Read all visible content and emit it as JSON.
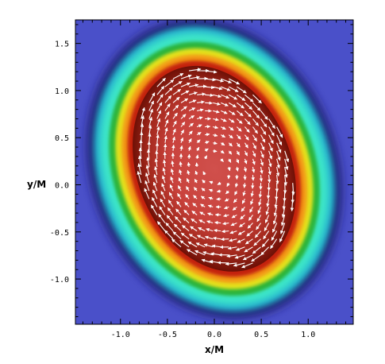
{
  "chart_data": {
    "type": "heatmap",
    "title": "",
    "xlabel": "x/M",
    "ylabel": "y/M",
    "xlim": [
      -1.48,
      1.48
    ],
    "ylim": [
      -1.48,
      1.75
    ],
    "x_ticks": [
      "-1.0",
      "-0.5",
      "0.0",
      "0.5",
      "1.0"
    ],
    "x_tick_values": [
      -1.0,
      -0.5,
      0.0,
      0.5,
      1.0
    ],
    "y_ticks": [
      "1.5",
      "1.0",
      "0.5",
      "0.0",
      "-0.5",
      "-1.0"
    ],
    "y_tick_values": [
      1.5,
      1.0,
      0.5,
      0.0,
      -0.5,
      -1.0
    ],
    "grid": false,
    "colormap": [
      "#4a50c9",
      "#1c1f6b",
      "#25b8d0",
      "#3ce6c8",
      "#2bb43a",
      "#e4e11a",
      "#f39a15",
      "#c4240f",
      "#7d1208",
      "#cf4f4a"
    ],
    "background_color": "#4a50c9",
    "structure": {
      "center": [
        0.0,
        0.17
      ],
      "core_semi_axes": [
        0.82,
        1.13
      ],
      "outer_semi_axes": [
        1.28,
        1.6
      ],
      "rotation_deg": -22,
      "description_values": "density peaks in the ellipsoidal core, falls through red, orange, yellow, green, cyan to a dark blue rim"
    },
    "vector_field": {
      "color": "#ffffff",
      "sense": "clockwise rotation inside core",
      "max_arrow_len_data": 0.13
    }
  }
}
